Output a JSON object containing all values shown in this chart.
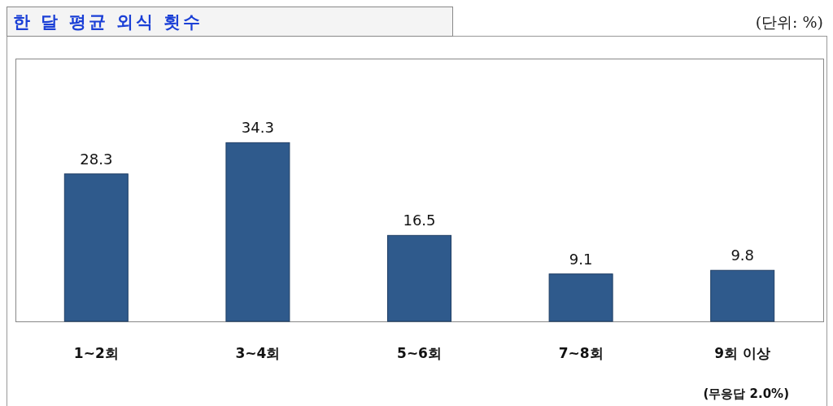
{
  "chart_data": {
    "type": "bar",
    "title": "한 달 평균 외식 횟수",
    "subtitle": "(단위: %)",
    "categories": [
      "1~2회",
      "3~4회",
      "5~6회",
      "7~8회",
      "9회 이상"
    ],
    "values": [
      28.3,
      34.3,
      16.5,
      9.1,
      9.8
    ],
    "color": "#2f5a8c",
    "data_labels": true,
    "annotations": [
      "(무응답 2.0%)"
    ]
  }
}
